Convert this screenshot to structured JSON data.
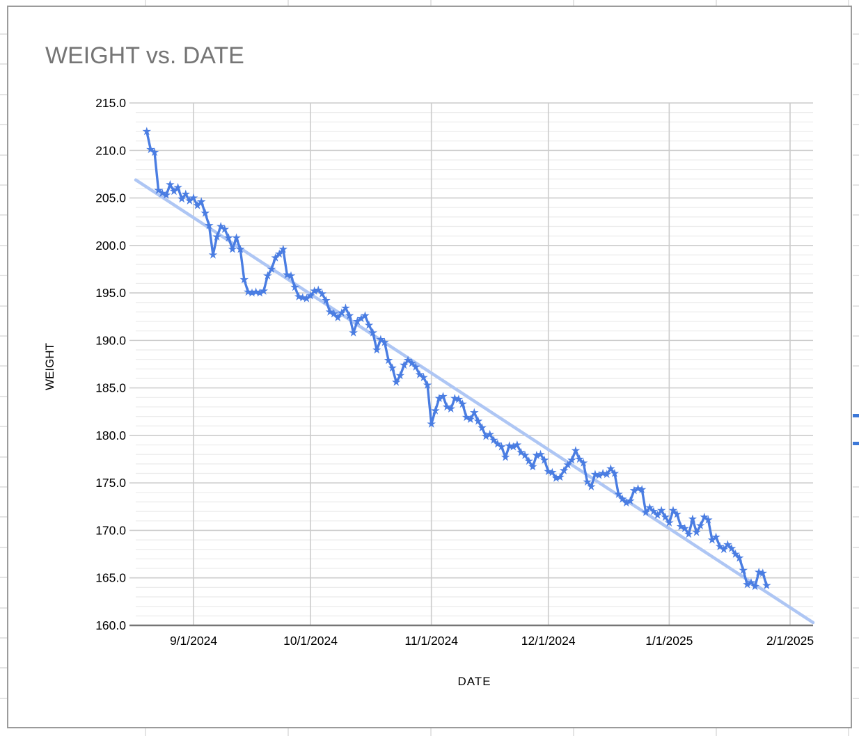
{
  "chart_data": {
    "type": "line",
    "title": "WEIGHT vs. DATE",
    "xlabel": "DATE",
    "ylabel": "WEIGHT",
    "ylim": [
      160,
      215
    ],
    "y_tick_step": 5,
    "y_minor_step": 1,
    "grid": "on",
    "legend": "none",
    "y_ticks": [
      "215.0",
      "210.0",
      "205.0",
      "200.0",
      "195.0",
      "190.0",
      "185.0",
      "180.0",
      "175.0",
      "170.0",
      "165.0",
      "160.0"
    ],
    "x_ticks": [
      "9/1/2024",
      "10/1/2024",
      "11/1/2024",
      "12/1/2024",
      "1/1/2025",
      "2/1/2025"
    ],
    "series": [
      {
        "name": "WEIGHT",
        "color": "#4a7de2",
        "marker": "star",
        "start_date": "8/20/2024",
        "cadence": "daily",
        "values": [
          212.0,
          210.1,
          209.8,
          205.8,
          205.5,
          205.3,
          206.4,
          205.7,
          206.1,
          204.9,
          205.4,
          204.7,
          205.0,
          204.2,
          204.6,
          203.4,
          202.1,
          199.0,
          200.9,
          202.0,
          201.7,
          200.8,
          199.6,
          200.8,
          199.6,
          196.4,
          195.1,
          195.0,
          195.1,
          195.0,
          195.2,
          196.8,
          197.5,
          198.7,
          199.1,
          199.6,
          196.9,
          196.8,
          195.6,
          194.6,
          194.5,
          194.4,
          194.7,
          195.2,
          195.3,
          194.9,
          194.2,
          193.0,
          192.8,
          192.4,
          192.9,
          193.4,
          192.6,
          190.8,
          192.0,
          192.3,
          192.6,
          191.6,
          190.8,
          189.0,
          190.1,
          189.8,
          187.9,
          187.1,
          185.6,
          186.3,
          187.4,
          187.9,
          187.6,
          187.2,
          186.4,
          186.1,
          185.3,
          181.2,
          182.6,
          183.9,
          184.1,
          183.0,
          182.8,
          183.9,
          183.8,
          183.3,
          181.9,
          181.7,
          182.4,
          181.5,
          180.8,
          179.9,
          180.1,
          179.5,
          179.1,
          178.8,
          177.7,
          178.9,
          178.8,
          179.0,
          178.2,
          177.9,
          177.3,
          176.7,
          177.9,
          178.0,
          177.4,
          176.2,
          176.1,
          175.5,
          175.6,
          176.3,
          176.9,
          177.4,
          178.4,
          177.5,
          177.1,
          175.1,
          174.6,
          175.9,
          175.8,
          176.0,
          175.9,
          176.5,
          176.0,
          173.8,
          173.3,
          172.9,
          173.1,
          174.2,
          174.4,
          174.3,
          171.9,
          172.4,
          172.0,
          171.6,
          172.1,
          171.4,
          170.8,
          172.1,
          171.7,
          170.4,
          170.2,
          169.6,
          171.2,
          169.8,
          170.5,
          171.4,
          171.1,
          169.0,
          169.3,
          168.3,
          168.0,
          168.5,
          168.1,
          167.5,
          167.1,
          165.8,
          164.3,
          164.5,
          164.1,
          165.6,
          165.5,
          164.2
        ]
      }
    ],
    "trendline": {
      "color": "#aec6f4",
      "left_value": 206.9,
      "right_value": 160.3
    }
  },
  "colors": {
    "title_gray": "#757575",
    "series_blue": "#4a7de2",
    "trend_blue": "#aec6f4",
    "axis_line": "#757575",
    "major_grid": "#cccccc",
    "minor_grid": "#ebebeb",
    "sheet_grid": "#e4e4e4",
    "selection_blue": "#3c78d8"
  }
}
